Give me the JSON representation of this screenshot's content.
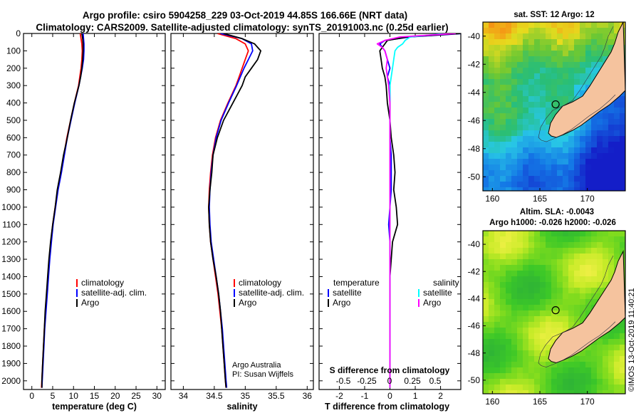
{
  "title": {
    "line1": "Argo profile: csiro 5904258_229 03-Oct-2019 44.85S 166.66E (NRT data)",
    "line2": "Climatology: CARS2009. Satellite-adjusted climatology: synTS_20191003.nc (0.25d earlier)"
  },
  "colors": {
    "climatology": "#ff0000",
    "satellite": "#0000ff",
    "argo": "#000000",
    "sat_salinity": "#00ffff",
    "argo_salinity": "#ff00ff",
    "land": "#f5c39e"
  },
  "depth_axis": {
    "range": [
      0,
      2050
    ],
    "ticks": [
      0,
      100,
      200,
      300,
      400,
      500,
      600,
      700,
      800,
      900,
      1000,
      1100,
      1200,
      1300,
      1400,
      1500,
      1600,
      1700,
      1800,
      1900,
      2000
    ],
    "labels": [
      "0",
      "100",
      "200",
      "300",
      "400",
      "500",
      "600",
      "700",
      "800",
      "900",
      "1000",
      "1100",
      "1200",
      "1300",
      "1400",
      "1500",
      "1600",
      "1700",
      "1800",
      "1900",
      "2000"
    ]
  },
  "chart_data": [
    {
      "type": "line",
      "id": "temperature",
      "xlabel": "temperature (deg C)",
      "xlim": [
        -2,
        32
      ],
      "xticks": [
        0,
        5,
        10,
        15,
        20,
        25,
        30
      ],
      "xticklabels": [
        "0",
        "5",
        "10",
        "15",
        "20",
        "25",
        "30"
      ],
      "legend": {
        "position": "lower-center",
        "entries": [
          "climatology",
          "satellite-adj. clim.",
          "Argo"
        ]
      },
      "depth": [
        0,
        30,
        60,
        100,
        150,
        200,
        250,
        300,
        400,
        500,
        600,
        700,
        800,
        900,
        1000,
        1100,
        1200,
        1300,
        1400,
        1500,
        1600,
        1700,
        1800,
        1900,
        2000,
        2040
      ],
      "series": [
        {
          "name": "climatology",
          "values": [
            11.6,
            11.8,
            12.0,
            12.1,
            12.0,
            11.8,
            11.5,
            11.2,
            10.2,
            9.3,
            8.4,
            7.7,
            7.0,
            6.2,
            5.6,
            5.0,
            4.6,
            4.2,
            3.9,
            3.6,
            3.3,
            3.0,
            2.8,
            2.6,
            2.4,
            2.3
          ]
        },
        {
          "name": "satellite-adj. clim.",
          "values": [
            12.3,
            12.4,
            12.5,
            12.5,
            12.4,
            12.1,
            11.7,
            11.3,
            10.3,
            9.4,
            8.5,
            7.8,
            7.1,
            6.3,
            5.7,
            5.1,
            4.7,
            4.3,
            4.0,
            3.7,
            3.4,
            3.1,
            2.9,
            2.7,
            2.5,
            2.4
          ]
        },
        {
          "name": "Argo",
          "values": [
            12.0,
            12.2,
            12.3,
            12.3,
            12.2,
            12.0,
            11.7,
            11.3,
            10.2,
            9.3,
            8.5,
            7.6,
            6.9,
            6.1,
            5.6,
            5.0,
            4.5,
            4.1,
            3.8,
            3.5,
            3.2,
            3.0,
            2.8,
            2.6,
            2.4,
            2.4
          ]
        }
      ]
    },
    {
      "type": "line",
      "id": "salinity",
      "xlabel": "salinity",
      "xlim": [
        33.8,
        36.1
      ],
      "xticks": [
        34,
        34.5,
        35,
        35.5,
        36
      ],
      "xticklabels": [
        "34",
        "34.5",
        "35",
        "35.5",
        "36"
      ],
      "legend": {
        "position": "lower-center",
        "entries": [
          "climatology",
          "satellite-adj. clim.",
          "Argo"
        ]
      },
      "annotations": [
        "Argo Australia",
        "PI: Susan Wijffels"
      ],
      "depth": [
        0,
        30,
        60,
        100,
        150,
        200,
        250,
        300,
        400,
        500,
        600,
        700,
        800,
        900,
        1000,
        1100,
        1200,
        1300,
        1400,
        1500,
        1600,
        1700,
        1800,
        1900,
        2000,
        2040
      ],
      "series": [
        {
          "name": "climatology",
          "values": [
            34.55,
            34.85,
            35.0,
            35.05,
            35.0,
            34.95,
            34.9,
            34.85,
            34.72,
            34.6,
            34.52,
            34.47,
            34.44,
            34.42,
            34.41,
            34.42,
            34.44,
            34.48,
            34.52,
            34.56,
            34.59,
            34.62,
            34.64,
            34.66,
            34.68,
            34.69
          ]
        },
        {
          "name": "satellite-adj. clim.",
          "values": [
            34.6,
            34.95,
            35.1,
            35.12,
            35.05,
            34.98,
            34.92,
            34.86,
            34.73,
            34.61,
            34.53,
            34.48,
            34.45,
            34.43,
            34.42,
            34.43,
            34.45,
            34.49,
            34.53,
            34.57,
            34.6,
            34.63,
            34.65,
            34.67,
            34.69,
            34.7
          ]
        },
        {
          "name": "Argo",
          "values": [
            34.65,
            34.95,
            35.15,
            35.25,
            35.2,
            35.1,
            35.0,
            34.95,
            34.8,
            34.65,
            34.55,
            34.48,
            34.46,
            34.43,
            34.41,
            34.42,
            34.44,
            34.48,
            34.53,
            34.57,
            34.6,
            34.62,
            34.64,
            34.66,
            34.68,
            34.69
          ]
        }
      ]
    },
    {
      "type": "line",
      "id": "difference",
      "xlabel": "T difference from climatology",
      "xlim": [
        -2.8,
        2.8
      ],
      "xticks": [
        -2,
        -1,
        0,
        1,
        2
      ],
      "xticklabels": [
        "-2",
        "-1",
        "0",
        "1",
        "2"
      ],
      "xlabel_top": "S difference from climatology",
      "xticks_top": [
        -0.5,
        -0.25,
        0,
        0.25,
        0.5
      ],
      "xticklabels_top": [
        "-0.5",
        "-0.25",
        "0",
        "0.25",
        "0.5"
      ],
      "legend": {
        "position": "lower",
        "temperature_header": "temperature",
        "salinity_header": "salinity",
        "entries": [
          "satellite",
          "Argo"
        ]
      },
      "depth": [
        0,
        20,
        40,
        60,
        80,
        100,
        150,
        200,
        250,
        300,
        400,
        500,
        600,
        700,
        800,
        900,
        1000,
        1100,
        1200,
        1400,
        1600,
        1800,
        2000,
        2040
      ],
      "series": [
        {
          "name": "temperature satellite",
          "values": [
            2.9,
            0.8,
            -0.2,
            -0.4,
            -0.3,
            -0.2,
            -0.1,
            0.0,
            -0.1,
            0.0,
            0.0,
            0.0,
            0.0,
            0.05,
            0.05,
            0.05,
            0.0,
            -0.05,
            0.0,
            0.0,
            0.0,
            0.0,
            0.0,
            0.0
          ]
        },
        {
          "name": "temperature Argo",
          "values": [
            2.8,
            0.7,
            -0.1,
            -0.2,
            -0.3,
            -0.4,
            -0.35,
            -0.3,
            -0.2,
            -0.15,
            -0.1,
            0.0,
            0.05,
            0.15,
            0.2,
            0.15,
            0.25,
            0.3,
            0.1,
            0.0,
            0.0,
            0.0,
            0.0,
            0.0
          ]
        },
        {
          "name": "salinity satellite",
          "values": [
            2.2,
            0.8,
            0.6,
            0.5,
            0.3,
            0.2,
            0.15,
            0.1,
            0.05,
            0.0,
            0.0,
            0.0,
            0.0,
            0.0,
            0.0,
            0.0,
            0.0,
            0.0,
            0.0,
            0.0,
            0.0,
            0.0,
            0.0,
            0.0
          ]
        },
        {
          "name": "salinity Argo",
          "values": [
            2.6,
            0.4,
            -0.2,
            -0.5,
            -0.3,
            -0.2,
            -0.1,
            -0.15,
            -0.1,
            -0.05,
            0.0,
            0.0,
            0.0,
            0.0,
            0.0,
            0.0,
            0.0,
            0.0,
            0.0,
            0.0,
            0.0,
            0.0,
            0.0,
            0.0
          ]
        }
      ]
    },
    {
      "type": "heatmap",
      "id": "sst_map",
      "title": "sat. SST: 12 Argo: 12",
      "lon_range": [
        159,
        174
      ],
      "lat_range": [
        -51,
        -39
      ],
      "xticks": [
        160,
        165,
        170
      ],
      "xticklabels": [
        "160",
        "165",
        "170"
      ],
      "yticks": [
        -40,
        -42,
        -44,
        -46,
        -48,
        -50
      ],
      "yticklabels": [
        "-40",
        "-42",
        "-44",
        "-46",
        "-48",
        "-50"
      ],
      "profile_location": {
        "lon": 166.66,
        "lat": -44.85
      }
    },
    {
      "type": "heatmap",
      "id": "sla_map",
      "title": "Altim. SLA: -0.0043",
      "subtitle": "Argo h1000: -0.026 h2000: -0.026",
      "lon_range": [
        159,
        174
      ],
      "lat_range": [
        -51,
        -39
      ],
      "xticks": [
        160,
        165,
        170
      ],
      "xticklabels": [
        "160",
        "165",
        "170"
      ],
      "yticks": [
        -40,
        -42,
        -44,
        -46,
        -48,
        -50
      ],
      "yticklabels": [
        "-40",
        "-42",
        "-44",
        "-46",
        "-48",
        "-50"
      ],
      "profile_location": {
        "lon": 166.66,
        "lat": -44.85
      }
    }
  ],
  "credit": "©IMOS 13-Oct-2019 11:40:21"
}
